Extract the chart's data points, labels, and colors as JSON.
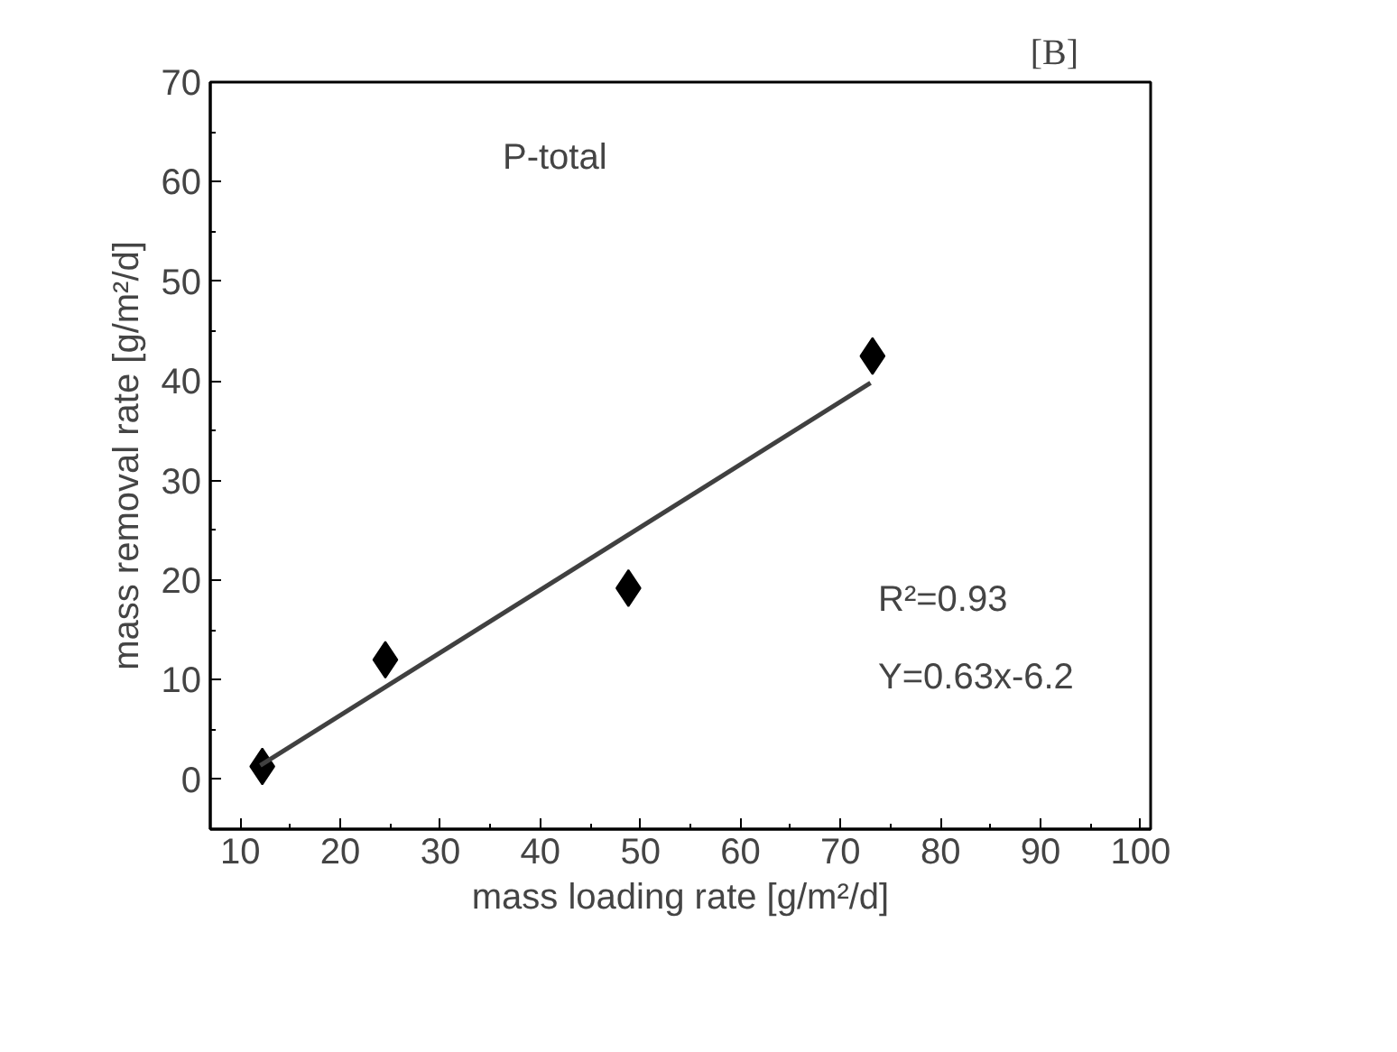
{
  "chart_data": {
    "type": "scatter",
    "xlabel": "mass loading rate [g/m²/d]",
    "ylabel": "mass removal rate [g/m²/d]",
    "xlim": [
      7,
      101
    ],
    "ylim": [
      -5,
      70
    ],
    "xticks": [
      10,
      20,
      30,
      40,
      50,
      60,
      70,
      80,
      90,
      100
    ],
    "yticks": [
      0,
      10,
      20,
      30,
      40,
      50,
      60,
      70
    ],
    "grid": false,
    "marker": "diamond",
    "series": [
      {
        "color": "#000000",
        "x": [
          12.2,
          24.5,
          48.8,
          73.2
        ],
        "values": [
          1.3,
          12.0,
          19.2,
          42.5
        ]
      },
      {
        "type": "line",
        "color": "#404040",
        "line_style": "solid",
        "marker": "none",
        "x": [
          12,
          73
        ],
        "values": [
          1.4,
          39.8
        ]
      }
    ],
    "annotations": [
      "P-total",
      "R²=0.93",
      "Y=0.63x-6.2",
      "[B]"
    ]
  }
}
